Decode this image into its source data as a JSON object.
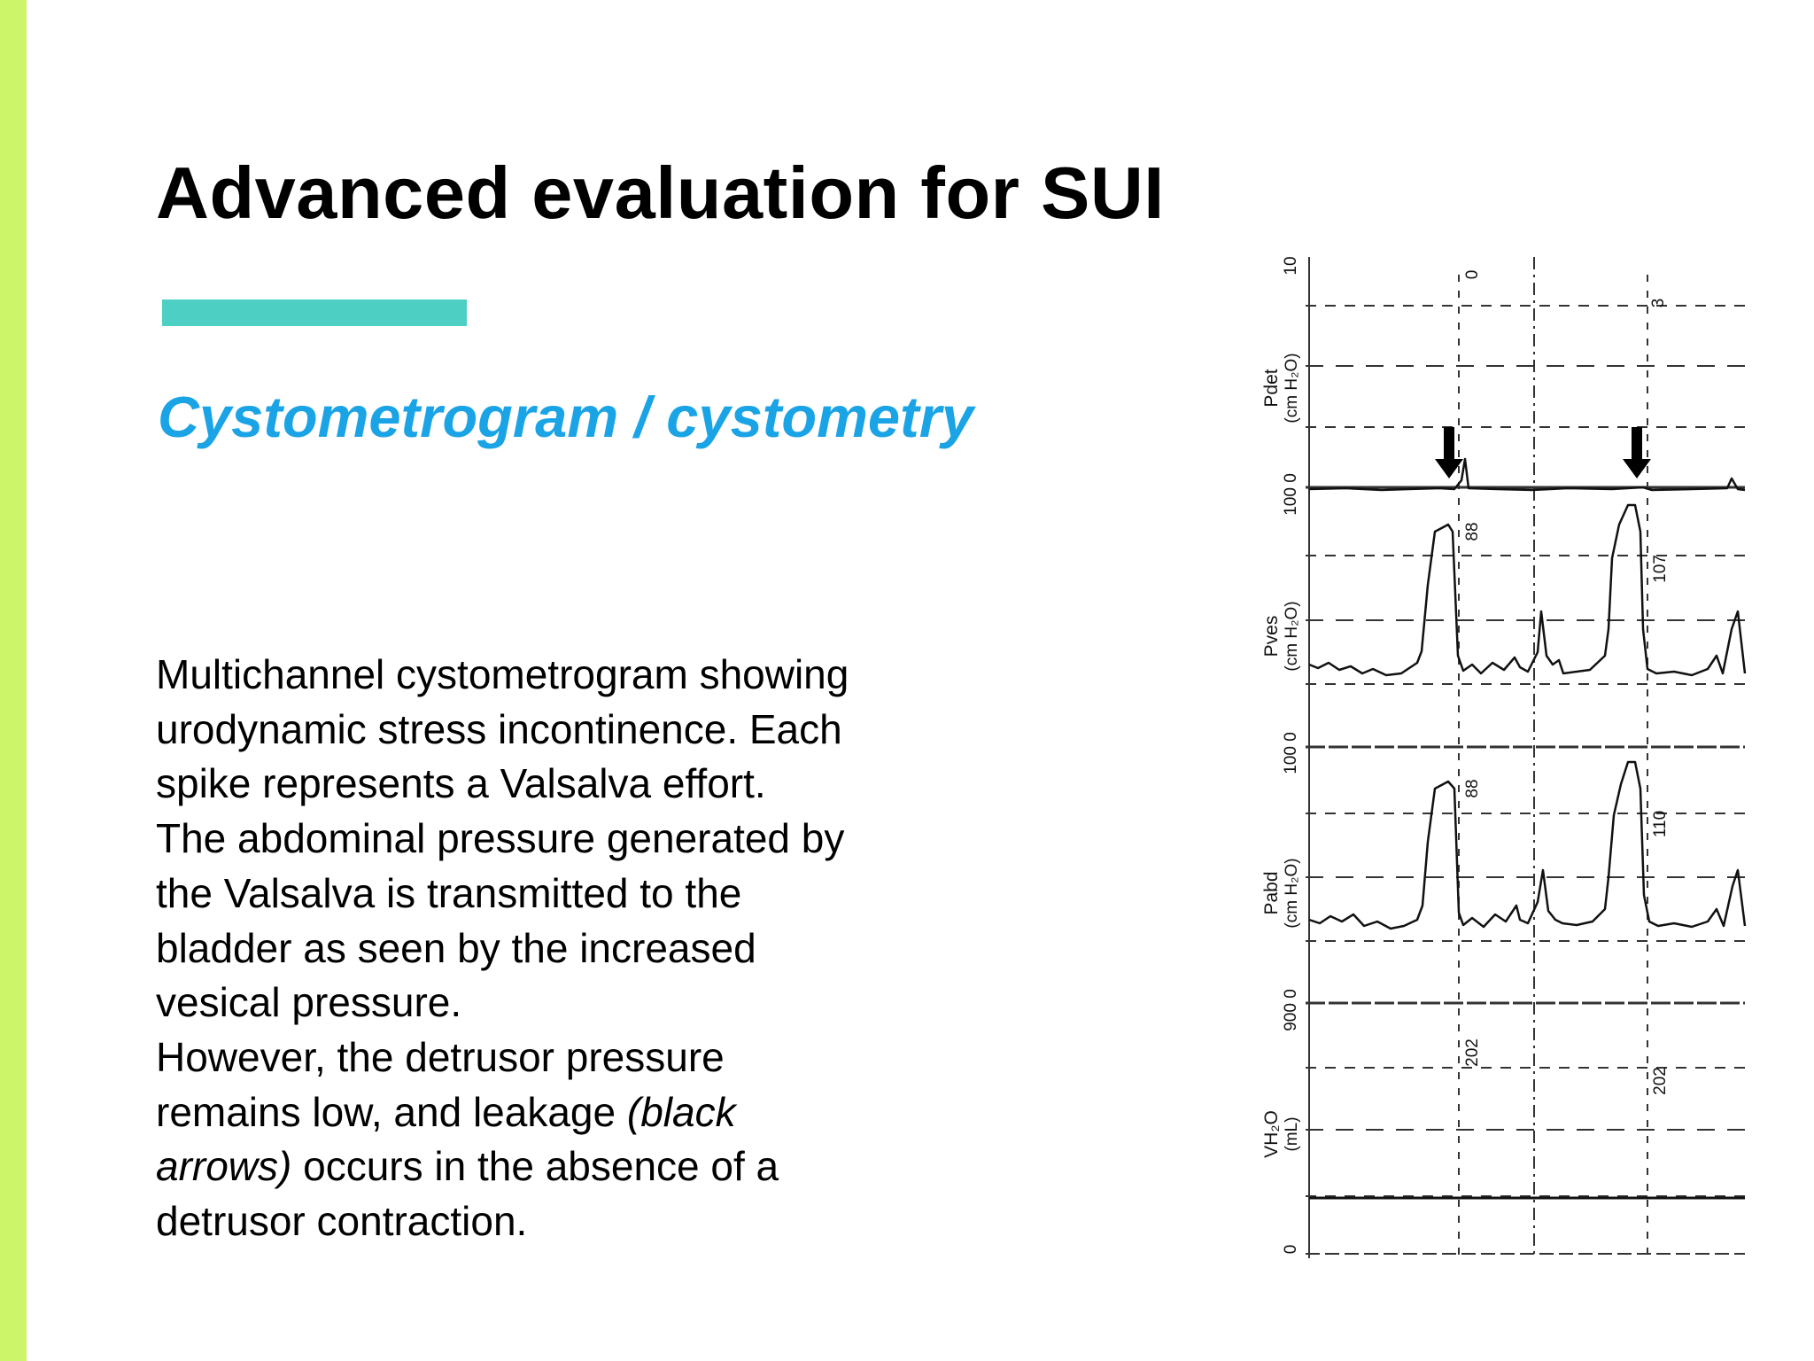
{
  "colors": {
    "accent_bar": "#cdf56a",
    "title_underline": "#4ecfc4",
    "subtitle": "#1aa4e6",
    "trace": "#111111"
  },
  "slide": {
    "title": "Advanced evaluation for SUI",
    "subtitle": "Cystometrogram / cystometry",
    "body": [
      {
        "text": "Multichannel cystometrogram showing"
      },
      {
        "text": "urodynamic stress incontinence. Each"
      },
      {
        "text": "spike represents a Valsalva effort."
      },
      {
        "text": "The abdominal pressure generated by"
      },
      {
        "text": "the Valsalva is transmitted to the"
      },
      {
        "text": "bladder as seen by the increased"
      },
      {
        "text": "vesical pressure."
      },
      {
        "text": "However, the detrusor pressure"
      },
      {
        "pre": "remains low, and leakage ",
        "em": "(black",
        "post": ""
      },
      {
        "pre": "",
        "em": "arrows)",
        "post": " occurs in the absence of a"
      },
      {
        "text": "detrusor contraction."
      }
    ]
  },
  "figure": {
    "channels": [
      {
        "name": "Pdet",
        "unit": "(cm H₂O)",
        "scale_top": "10",
        "scale_bottom": "100 0"
      },
      {
        "name": "Pves",
        "unit": "(cm H₂O)",
        "scale_bottom": "100 0"
      },
      {
        "name": "Pabd",
        "unit": "(cm H₂O)",
        "scale_bottom": "900 0"
      },
      {
        "name": "VH₂O",
        "unit": "(mL)",
        "scale_bottom": "0"
      }
    ],
    "peak_labels": {
      "pdet": [
        "0",
        "3"
      ],
      "pves": [
        "88",
        "107"
      ],
      "pabd": [
        "88",
        "110"
      ],
      "vol": [
        "202",
        "202"
      ]
    },
    "leak_markers": [
      "down-arrow",
      "down-arrow"
    ]
  }
}
